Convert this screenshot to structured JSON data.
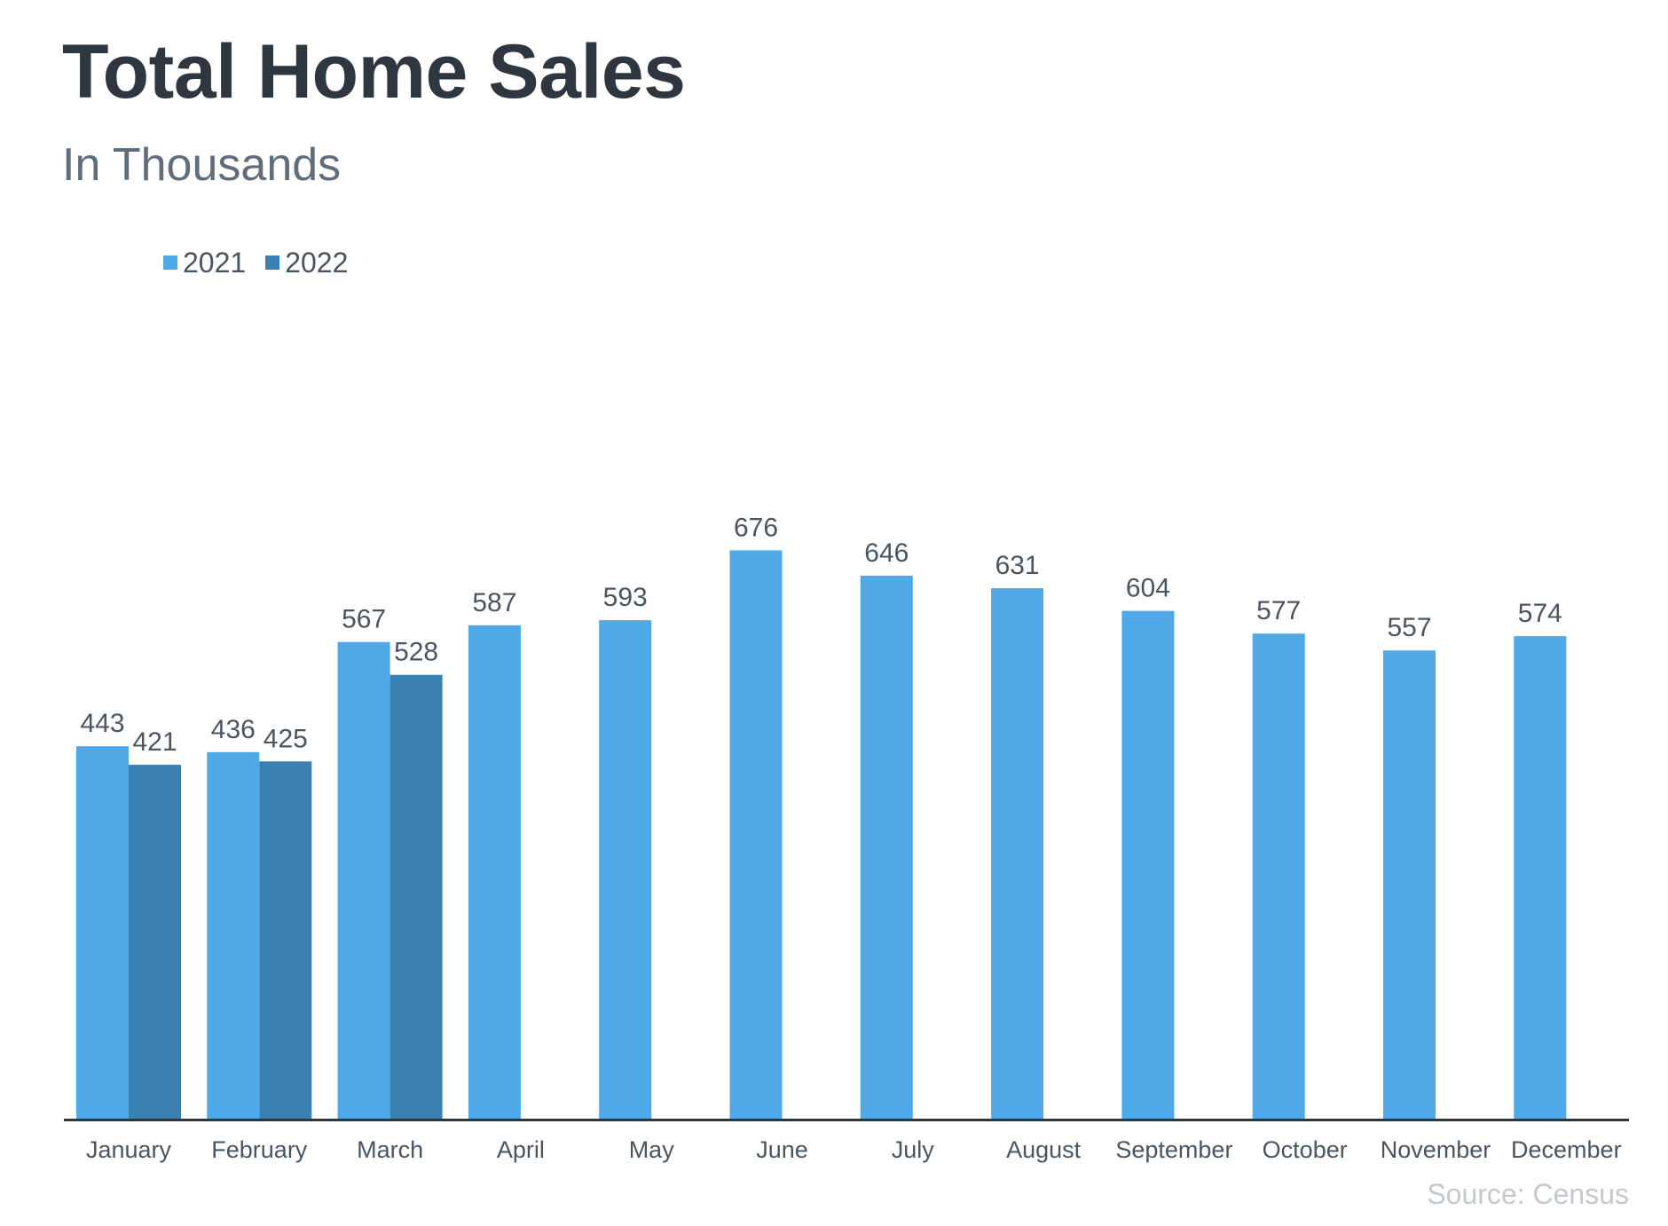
{
  "chart_data": {
    "type": "bar",
    "title": "Total Home Sales",
    "subtitle": "In Thousands",
    "categories": [
      "January",
      "February",
      "March",
      "April",
      "May",
      "June",
      "July",
      "August",
      "September",
      "October",
      "November",
      "December"
    ],
    "series": [
      {
        "name": "2021",
        "color": "#4ea9e6",
        "values": [
          443,
          436,
          567,
          587,
          593,
          676,
          646,
          631,
          604,
          577,
          557,
          574
        ]
      },
      {
        "name": "2022",
        "color": "#3a80b2",
        "values": [
          421,
          425,
          528,
          null,
          null,
          null,
          null,
          null,
          null,
          null,
          null,
          null
        ]
      }
    ],
    "ylim": [
      0,
      760
    ],
    "grid": false,
    "legend_position": "top-left",
    "source": "Source: Census"
  }
}
